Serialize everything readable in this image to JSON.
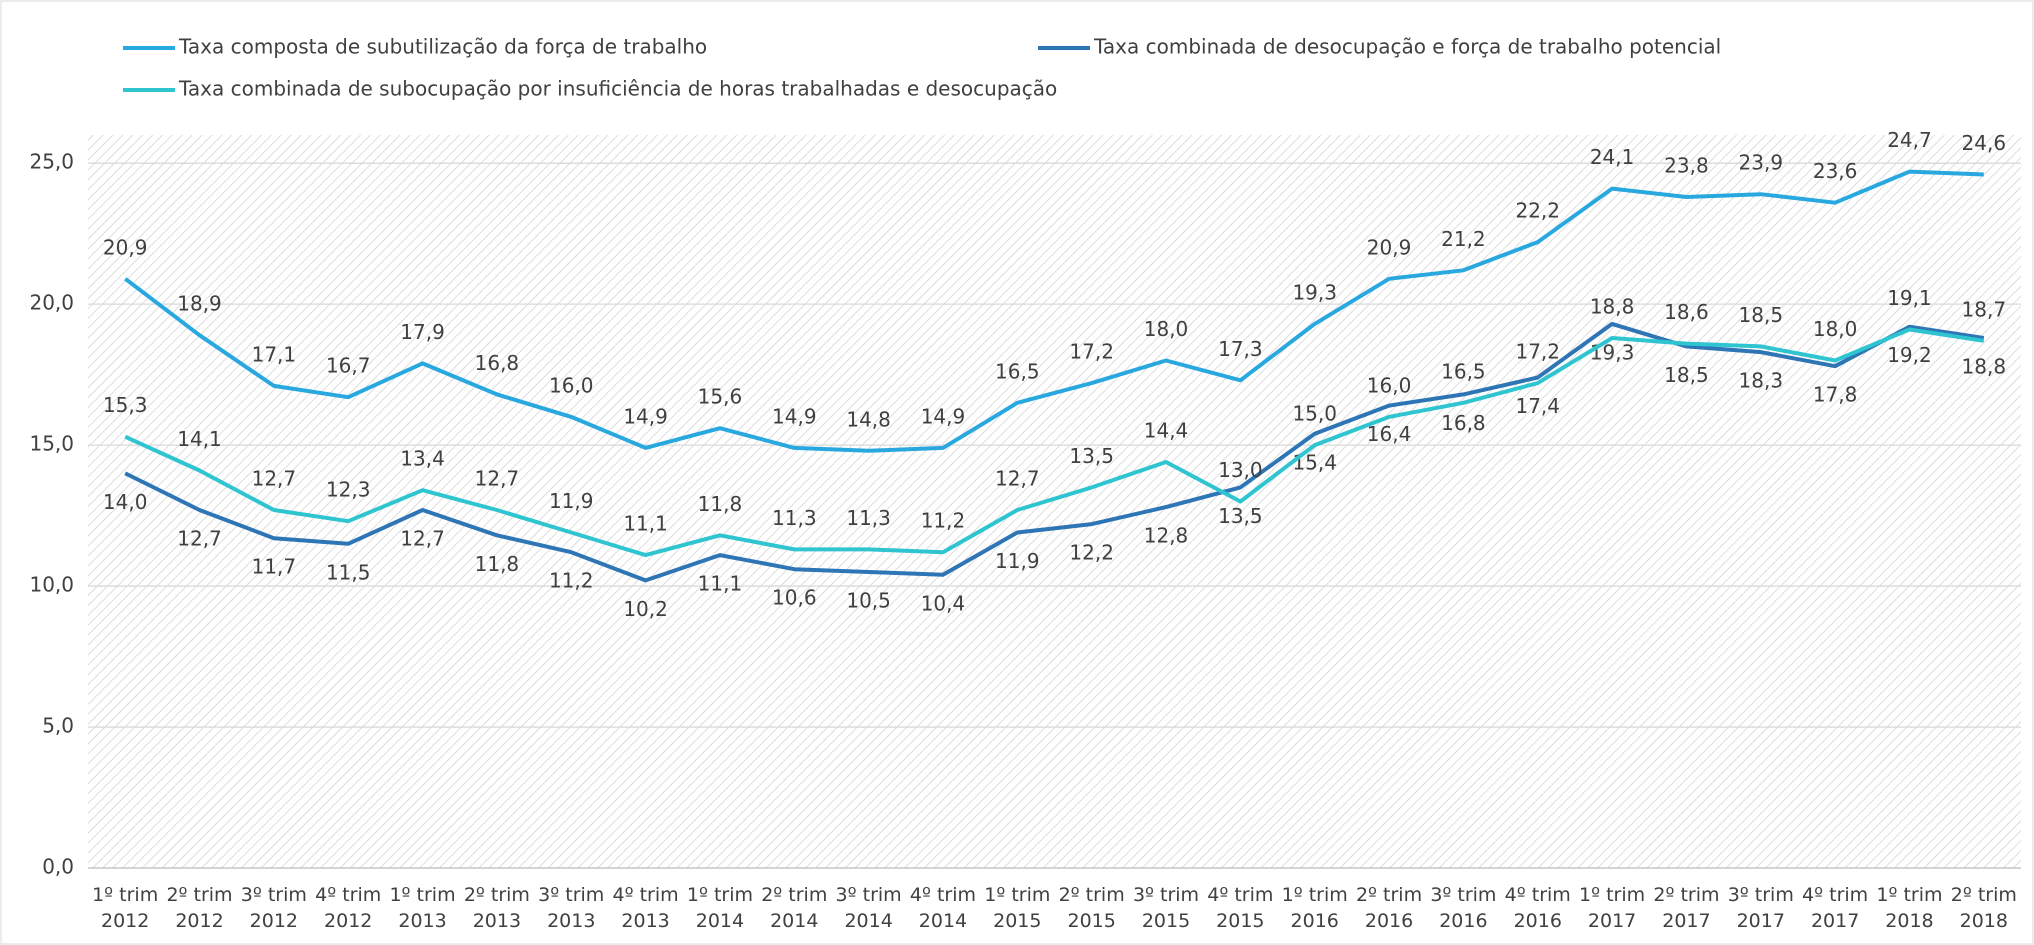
{
  "chart_data": {
    "type": "line",
    "categories": [
      "1º trim\n2012",
      "2º trim\n2012",
      "3º trim\n2012",
      "4º trim\n2012",
      "1º trim\n2013",
      "2º trim\n2013",
      "3º trim\n2013",
      "4º trim\n2013",
      "1º trim\n2014",
      "2º trim\n2014",
      "3º trim\n2014",
      "4º trim\n2014",
      "1º trim\n2015",
      "2º trim\n2015",
      "3º trim\n2015",
      "4º trim\n2015",
      "1º trim\n2016",
      "2º trim\n2016",
      "3º trim\n2016",
      "4º trim\n2016",
      "1º trim\n2017",
      "2º trim\n2017",
      "3º trim\n2017",
      "4º trim\n2017",
      "1º trim\n2018",
      "2º trim\n2018"
    ],
    "series": [
      {
        "name": "Taxa composta de subutilização da força de trabalho",
        "color": "#29a8e0",
        "label_position": "above",
        "values": [
          20.9,
          18.9,
          17.1,
          16.7,
          17.9,
          16.8,
          16.0,
          14.9,
          15.6,
          14.9,
          14.8,
          14.9,
          16.5,
          17.2,
          18.0,
          17.3,
          19.3,
          20.9,
          21.2,
          22.2,
          24.1,
          23.8,
          23.9,
          23.6,
          24.7,
          24.6
        ],
        "value_labels": [
          "20,9",
          "18,9",
          "17,1",
          "16,7",
          "17,9",
          "16,8",
          "16,0",
          "14,9",
          "15,6",
          "14,9",
          "14,8",
          "14,9",
          "16,5",
          "17,2",
          "18,0",
          "17,3",
          "19,3",
          "20,9",
          "21,2",
          "22,2",
          "24,1",
          "23,8",
          "23,9",
          "23,6",
          "24,7",
          "24,6"
        ]
      },
      {
        "name": "Taxa combinada de desocupação e força de trabalho potencial",
        "color": "#2e75b6",
        "label_position": "below",
        "values": [
          14.0,
          12.7,
          11.7,
          11.5,
          12.7,
          11.8,
          11.2,
          10.2,
          11.1,
          10.6,
          10.5,
          10.4,
          11.9,
          12.2,
          12.8,
          13.5,
          15.4,
          16.4,
          16.8,
          17.4,
          19.3,
          18.5,
          18.3,
          17.8,
          19.2,
          18.8
        ],
        "value_labels": [
          "14,0",
          "12,7",
          "11,7",
          "11,5",
          "12,7",
          "11,8",
          "11,2",
          "10,2",
          "11,1",
          "10,6",
          "10,5",
          "10,4",
          "11,9",
          "12,2",
          "12,8",
          "13,5",
          "15,4",
          "16,4",
          "16,8",
          "17,4",
          "19,3",
          "18,5",
          "18,3",
          "17,8",
          "19,2",
          "18,8"
        ]
      },
      {
        "name": "Taxa combinada de subocupação por insuficiência de horas trabalhadas e desocupação",
        "color": "#2ec4d0",
        "label_position": "above",
        "values": [
          15.3,
          14.1,
          12.7,
          12.3,
          13.4,
          12.7,
          11.9,
          11.1,
          11.8,
          11.3,
          11.3,
          11.2,
          12.7,
          13.5,
          14.4,
          13.0,
          15.0,
          16.0,
          16.5,
          17.2,
          18.8,
          18.6,
          18.5,
          18.0,
          19.1,
          18.7
        ],
        "value_labels": [
          "15,3",
          "14,1",
          "12,7",
          "12,3",
          "13,4",
          "12,7",
          "11,9",
          "11,1",
          "11,8",
          "11,3",
          "11,3",
          "11,2",
          "12,7",
          "13,5",
          "14,4",
          "13,0",
          "15,0",
          "16,0",
          "16,5",
          "17,2",
          "18,8",
          "18,6",
          "18,5",
          "18,0",
          "19,1",
          "18,7"
        ]
      }
    ],
    "ylim": [
      0,
      26
    ],
    "yticks": [
      {
        "value": 0,
        "label": "0,0"
      },
      {
        "value": 5,
        "label": "5,0"
      },
      {
        "value": 10,
        "label": "10,0"
      },
      {
        "value": 15,
        "label": "15,0"
      },
      {
        "value": 20,
        "label": "20,0"
      },
      {
        "value": 25,
        "label": "25,0"
      }
    ],
    "grid": true,
    "legend": "top"
  }
}
